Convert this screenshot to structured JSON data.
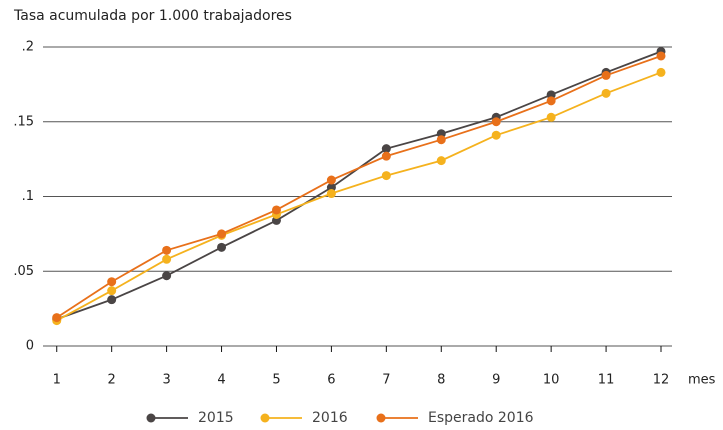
{
  "chart_data": {
    "type": "line",
    "title": "Tasa acumulada por 1.000 trabajadores",
    "x_label": "mes",
    "x": [
      1,
      2,
      3,
      4,
      5,
      6,
      7,
      8,
      9,
      10,
      11,
      12
    ],
    "xlim": [
      0.75,
      12.2
    ],
    "xticks": [
      1,
      2,
      3,
      4,
      5,
      6,
      7,
      8,
      9,
      10,
      11,
      12
    ],
    "ylim": [
      0,
      0.2
    ],
    "yticks": [
      0,
      {
        "value": 0.05,
        "label": ".05"
      },
      {
        "value": 0.1,
        "label": ".1"
      },
      {
        "value": 0.15,
        "label": ".15"
      },
      {
        "value": 0.2,
        "label": ".2"
      }
    ],
    "grid": true,
    "legend": "bottom",
    "series": [
      {
        "name": "2015",
        "color": "#4a4545",
        "values": [
          0.018,
          0.031,
          0.047,
          0.066,
          0.084,
          0.106,
          0.132,
          0.142,
          0.153,
          0.168,
          0.183,
          0.197
        ]
      },
      {
        "name": "2016",
        "color": "#f5b21e",
        "values": [
          0.017,
          0.037,
          0.058,
          0.074,
          0.088,
          0.102,
          0.114,
          0.124,
          0.141,
          0.153,
          0.169,
          0.183
        ]
      },
      {
        "name": "Esperado 2016",
        "color": "#e8701a",
        "values": [
          0.019,
          0.043,
          0.064,
          0.075,
          0.091,
          0.111,
          0.127,
          0.138,
          0.15,
          0.164,
          0.181,
          0.194
        ]
      }
    ]
  }
}
